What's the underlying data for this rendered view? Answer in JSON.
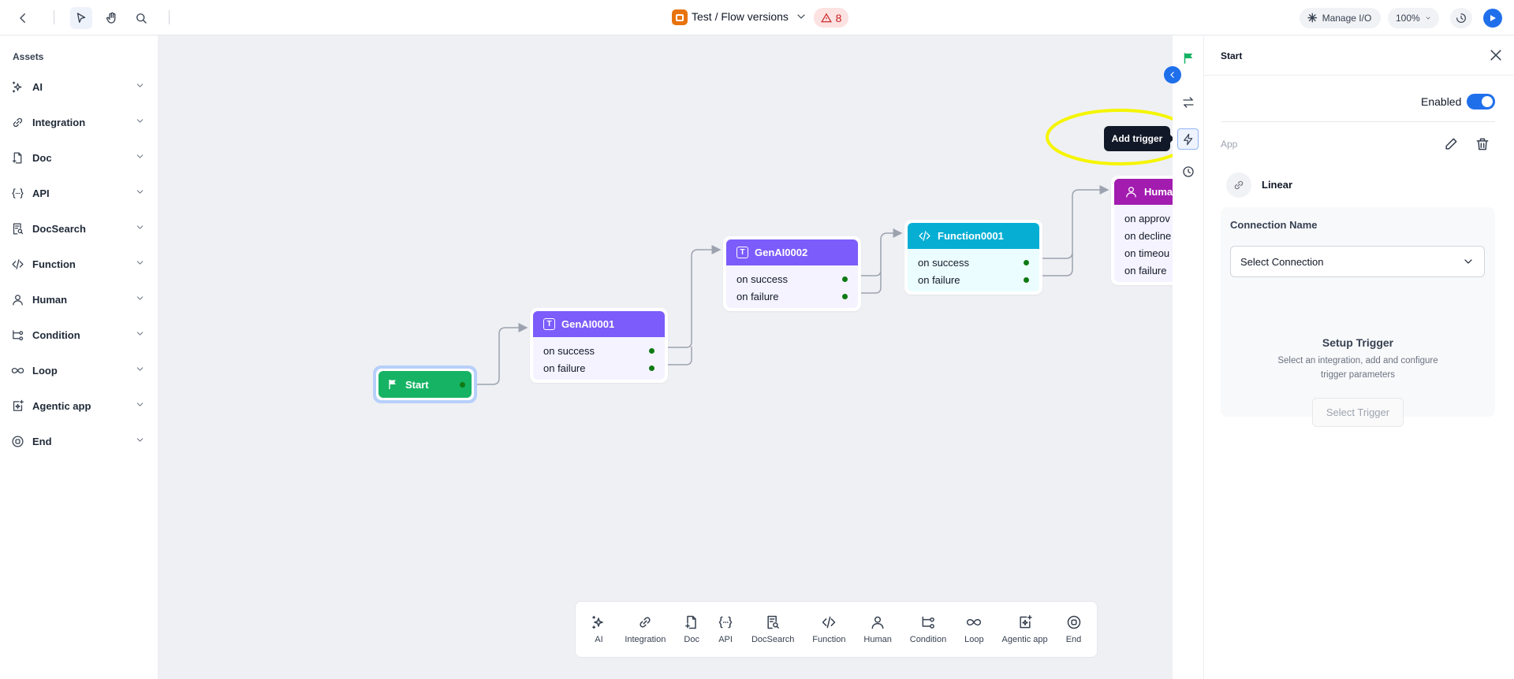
{
  "topbar": {
    "flow_title": "Test / Flow versions",
    "error_count": "8",
    "manage_io": "Manage I/O",
    "zoom": "100%"
  },
  "sidebar": {
    "title": "Assets",
    "items": [
      {
        "label": "AI",
        "icon": "sparkles-icon"
      },
      {
        "label": "Integration",
        "icon": "link-icon"
      },
      {
        "label": "Doc",
        "icon": "doc-icon"
      },
      {
        "label": "API",
        "icon": "api-icon"
      },
      {
        "label": "DocSearch",
        "icon": "doc-search-icon"
      },
      {
        "label": "Function",
        "icon": "code-icon"
      },
      {
        "label": "Human",
        "icon": "user-icon"
      },
      {
        "label": "Condition",
        "icon": "condition-icon"
      },
      {
        "label": "Loop",
        "icon": "infinity-icon"
      },
      {
        "label": "Agentic app",
        "icon": "agent-icon"
      },
      {
        "label": "End",
        "icon": "end-icon"
      }
    ]
  },
  "canvas": {
    "start": {
      "label": "Start",
      "color": "#16b364"
    },
    "nodes": [
      {
        "title": "GenAI0001",
        "color": "#7c5cfa",
        "body": "#f4f3ff",
        "ports": [
          "on success",
          "on failure"
        ]
      },
      {
        "title": "GenAI0002",
        "color": "#7c5cfa",
        "body": "#f4f3ff",
        "ports": [
          "on success",
          "on failure"
        ]
      },
      {
        "title": "Function0001",
        "color": "#06aed4",
        "body": "#ecfdff",
        "ports": [
          "on success",
          "on failure"
        ]
      },
      {
        "title": "Huma",
        "color": "#a21caf",
        "body": "#f5f3ff",
        "ports": [
          "on approv",
          "on decline",
          "on timeou",
          "on failure"
        ]
      }
    ],
    "tooltip": "Add trigger"
  },
  "toolbar": {
    "items": [
      "AI",
      "Integration",
      "Doc",
      "API",
      "DocSearch",
      "Function",
      "Human",
      "Condition",
      "Loop",
      "Agentic app",
      "End"
    ]
  },
  "panel": {
    "title": "Start",
    "enabled_label": "Enabled",
    "enabled": true,
    "app_label": "App",
    "app_name": "Linear",
    "connection_label": "Connection Name",
    "connection_value": "Select Connection",
    "setup_title": "Setup Trigger",
    "setup_desc_1": "Select an integration, add and configure",
    "setup_desc_2": "trigger parameters",
    "select_trigger": "Select Trigger"
  },
  "colors": {
    "accent": "#1f6feb",
    "highlight": "#f5f500"
  }
}
